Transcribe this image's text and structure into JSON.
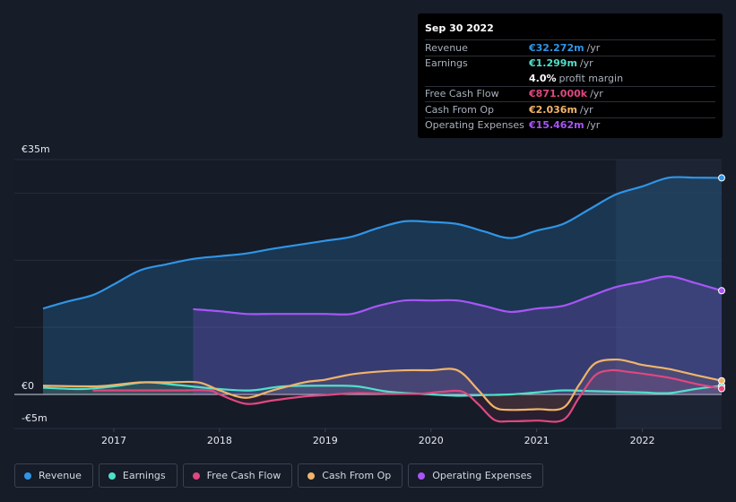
{
  "tooltip": {
    "date": "Sep 30 2022",
    "rows": [
      {
        "label": "Revenue",
        "value": "€32.272m",
        "unit": "/yr",
        "color": "#2f95e6"
      },
      {
        "label": "Earnings",
        "value": "€1.299m",
        "unit": "/yr",
        "color": "#4fe0c8"
      },
      {
        "label": "",
        "value": "4.0%",
        "unit": "profit margin",
        "color": "#ffffff"
      },
      {
        "label": "Free Cash Flow",
        "value": "€871.000k",
        "unit": "/yr",
        "color": "#e0487f"
      },
      {
        "label": "Cash From Op",
        "value": "€2.036m",
        "unit": "/yr",
        "color": "#f0b46a"
      },
      {
        "label": "Operating Expenses",
        "value": "€15.462m",
        "unit": "/yr",
        "color": "#a855f7"
      }
    ]
  },
  "chart_data": {
    "type": "area",
    "title": "",
    "ylim": [
      -5,
      35
    ],
    "y_tick_labels": [
      "€35m",
      "€0",
      "-€5m"
    ],
    "x_tick_labels": [
      "2017",
      "2018",
      "2019",
      "2020",
      "2021",
      "2022"
    ],
    "x_ticks": [
      2017,
      2018,
      2019,
      2020,
      2021,
      2022
    ],
    "xlim": [
      2016.25,
      2022.75
    ],
    "forecast_shade_start": 2021.75,
    "series": [
      {
        "name": "Revenue",
        "color": "#2f95e6",
        "x": [
          2016.33,
          2016.55,
          2016.8,
          2017.0,
          2017.25,
          2017.5,
          2017.75,
          2018.0,
          2018.25,
          2018.5,
          2018.75,
          2019.0,
          2019.25,
          2019.5,
          2019.75,
          2020.0,
          2020.25,
          2020.5,
          2020.75,
          2021.0,
          2021.25,
          2021.5,
          2021.75,
          2022.0,
          2022.25,
          2022.5,
          2022.75
        ],
        "values": [
          12.8,
          13.8,
          14.8,
          16.4,
          18.5,
          19.4,
          20.2,
          20.6,
          21.0,
          21.7,
          22.3,
          22.9,
          23.5,
          24.8,
          25.8,
          25.7,
          25.4,
          24.3,
          23.3,
          24.4,
          25.4,
          27.6,
          29.8,
          31.0,
          32.3,
          32.3,
          32.27
        ]
      },
      {
        "name": "Earnings",
        "color": "#4fe0c8",
        "x": [
          2016.33,
          2016.7,
          2017.0,
          2017.3,
          2017.6,
          2018.0,
          2018.3,
          2018.6,
          2019.0,
          2019.3,
          2019.6,
          2020.0,
          2020.25,
          2020.5,
          2020.75,
          2021.0,
          2021.25,
          2021.5,
          2021.75,
          2022.0,
          2022.25,
          2022.5,
          2022.75
        ],
        "values": [
          1.0,
          0.8,
          1.2,
          1.8,
          1.4,
          0.8,
          0.6,
          1.2,
          1.3,
          1.2,
          0.4,
          0.0,
          -0.2,
          -0.1,
          0.0,
          0.3,
          0.6,
          0.5,
          0.4,
          0.3,
          0.2,
          0.8,
          1.3
        ]
      },
      {
        "name": "Free Cash Flow",
        "color": "#e0487f",
        "x": [
          2016.8,
          2017.0,
          2017.3,
          2017.6,
          2017.9,
          2018.0,
          2018.25,
          2018.5,
          2018.8,
          2019.0,
          2019.3,
          2019.6,
          2019.9,
          2020.1,
          2020.3,
          2020.45,
          2020.6,
          2020.75,
          2021.0,
          2021.25,
          2021.4,
          2021.55,
          2021.7,
          2021.85,
          2022.0,
          2022.25,
          2022.5,
          2022.75
        ],
        "values": [
          0.6,
          0.6,
          0.6,
          0.6,
          0.6,
          0.0,
          -1.4,
          -0.9,
          -0.3,
          -0.1,
          0.2,
          0.1,
          0.1,
          0.4,
          0.4,
          -1.5,
          -3.8,
          -4.0,
          -3.9,
          -3.8,
          -0.5,
          2.8,
          3.6,
          3.4,
          3.1,
          2.5,
          1.6,
          0.87
        ]
      },
      {
        "name": "Cash From Op",
        "color": "#f0b46a",
        "x": [
          2016.33,
          2016.8,
          2017.0,
          2017.25,
          2017.5,
          2017.8,
          2018.0,
          2018.25,
          2018.5,
          2018.8,
          2019.0,
          2019.25,
          2019.5,
          2019.75,
          2020.0,
          2020.25,
          2020.45,
          2020.6,
          2020.75,
          2021.0,
          2021.25,
          2021.4,
          2021.55,
          2021.75,
          2021.9,
          2022.0,
          2022.25,
          2022.5,
          2022.75
        ],
        "values": [
          1.3,
          1.2,
          1.4,
          1.8,
          1.8,
          1.8,
          0.6,
          -0.5,
          0.6,
          1.8,
          2.2,
          3.0,
          3.4,
          3.6,
          3.6,
          3.6,
          0.6,
          -1.9,
          -2.3,
          -2.2,
          -2.0,
          1.4,
          4.6,
          5.2,
          4.8,
          4.4,
          3.8,
          2.9,
          2.04
        ]
      },
      {
        "name": "Operating Expenses",
        "color": "#a855f7",
        "x": [
          2017.75,
          2018.0,
          2018.25,
          2018.5,
          2018.75,
          2019.0,
          2019.25,
          2019.5,
          2019.75,
          2020.0,
          2020.25,
          2020.5,
          2020.75,
          2021.0,
          2021.25,
          2021.5,
          2021.75,
          2022.0,
          2022.25,
          2022.5,
          2022.75
        ],
        "values": [
          12.7,
          12.4,
          12.0,
          12.0,
          12.0,
          12.0,
          12.0,
          13.2,
          14.0,
          14.0,
          14.0,
          13.2,
          12.3,
          12.8,
          13.2,
          14.6,
          16.0,
          16.8,
          17.6,
          16.6,
          15.46
        ]
      }
    ]
  },
  "legend": {
    "items": [
      {
        "label": "Revenue",
        "color": "#2f95e6"
      },
      {
        "label": "Earnings",
        "color": "#4fe0c8"
      },
      {
        "label": "Free Cash Flow",
        "color": "#e0487f"
      },
      {
        "label": "Cash From Op",
        "color": "#f0b46a"
      },
      {
        "label": "Operating Expenses",
        "color": "#a855f7"
      }
    ]
  }
}
